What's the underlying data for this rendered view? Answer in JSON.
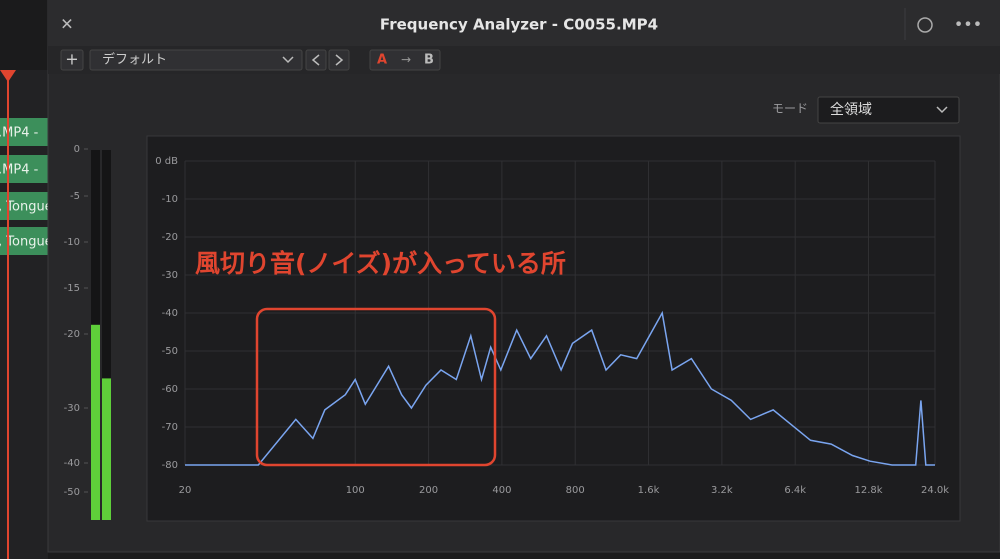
{
  "window": {
    "title": "Frequency Analyzer - C0055.MP4",
    "preset": "デフォルト",
    "a": "A",
    "b": "B",
    "mode_label": "モード",
    "mode": "全領域"
  },
  "timeline": {
    "clips": [
      ".MP4 -",
      ".MP4 -",
      ", Tongue",
      ", Tongue"
    ]
  },
  "meter": {
    "ticks": [
      0,
      -5,
      -10,
      -15,
      -20,
      -30,
      -40,
      -50
    ],
    "channels": [
      -19,
      -26
    ],
    "color": "#5fcf3a"
  },
  "chart_data": {
    "type": "line",
    "annotation": "風切り音(ノイズ)が入っている所",
    "x_scale": "log",
    "grid": true,
    "xlim": [
      20,
      24000
    ],
    "ylim": [
      -80,
      0
    ],
    "xticks": [
      20,
      100,
      200,
      400,
      800,
      {
        "value": 1600,
        "label": "1.6k"
      },
      {
        "value": 3200,
        "label": "3.2k"
      },
      {
        "value": 6400,
        "label": "6.4k"
      },
      {
        "value": 12800,
        "label": "12.8k"
      },
      {
        "value": 24000,
        "label": "24.0k"
      }
    ],
    "yticks": [
      {
        "value": 0,
        "label": "0 dB"
      },
      -10,
      -20,
      -30,
      -40,
      -50,
      -60,
      -70,
      -80
    ],
    "x": [
      20,
      40,
      57,
      67,
      75,
      91,
      100,
      110,
      137,
      155,
      170,
      195,
      225,
      260,
      298,
      330,
      360,
      396,
      460,
      525,
      610,
      700,
      780,
      935,
      1070,
      1230,
      1430,
      1820,
      2000,
      2400,
      2900,
      3500,
      4200,
      5200,
      6200,
      7400,
      9000,
      11000,
      13000,
      16000,
      20000,
      21000,
      22000,
      24000
    ],
    "series": [
      {
        "color": "#7aa5f0",
        "values": [
          -80,
          -80,
          -68,
          -73,
          -65.5,
          -61.5,
          -57.5,
          -64,
          -54,
          -61.5,
          -65,
          -59,
          -55,
          -57.5,
          -46,
          -57.5,
          -49,
          -55,
          -44.5,
          -52,
          -46,
          -55,
          -48,
          -44.5,
          -55,
          -51,
          -52,
          -40,
          -55,
          -52,
          -60,
          -63,
          -68,
          -65.5,
          -69.5,
          -73.5,
          -74.5,
          -77.5,
          -79,
          -80,
          -80,
          -63,
          -80,
          -80
        ]
      }
    ]
  }
}
